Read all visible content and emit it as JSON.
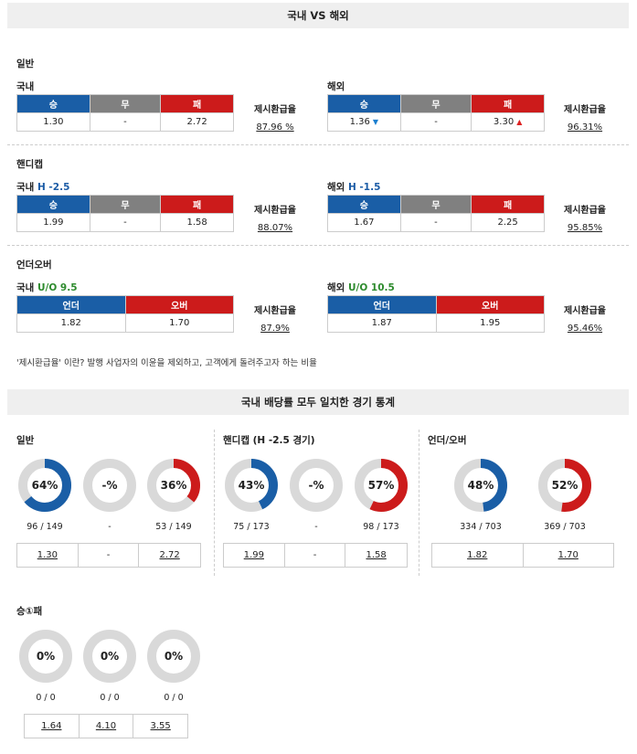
{
  "header": {
    "title": "국내 VS 해외"
  },
  "general": {
    "section_label": "일반",
    "domestic": {
      "label": "국내",
      "win": "승",
      "draw": "무",
      "lose": "패",
      "v1": "1.30",
      "v2": "-",
      "v3": "2.72",
      "rate_label": "제시환급율",
      "rate": "87.96 %"
    },
    "overseas": {
      "label": "해외",
      "win": "승",
      "draw": "무",
      "lose": "패",
      "v1": "1.36",
      "v1_arrow": "▼",
      "v2": "-",
      "v3": "3.30",
      "v3_arrow": "▲",
      "rate_label": "제시환급율",
      "rate": "96.31%"
    }
  },
  "handicap": {
    "section_label": "핸디캡",
    "domestic": {
      "label": "국내",
      "line": "H -2.5",
      "win": "승",
      "draw": "무",
      "lose": "패",
      "v1": "1.99",
      "v2": "-",
      "v3": "1.58",
      "rate_label": "제시환급율",
      "rate": "88.07%"
    },
    "overseas": {
      "label": "해외",
      "line": "H -1.5",
      "win": "승",
      "draw": "무",
      "lose": "패",
      "v1": "1.67",
      "v2": "-",
      "v3": "2.25",
      "rate_label": "제시환급율",
      "rate": "95.85%"
    }
  },
  "underover": {
    "section_label": "언더오버",
    "domestic": {
      "label": "국내",
      "line": "U/O 9.5",
      "under": "언더",
      "over": "오버",
      "v1": "1.82",
      "v2": "1.70",
      "rate_label": "제시환급율",
      "rate": "87.9%"
    },
    "overseas": {
      "label": "해외",
      "line": "U/O 10.5",
      "under": "언더",
      "over": "오버",
      "v1": "1.87",
      "v2": "1.95",
      "rate_label": "제시환급율",
      "rate": "95.46%"
    }
  },
  "note": "'제시환급율' 이란? 발행 사업자의 이윤을 제외하고, 고객에게 돌려주고자 하는 비율",
  "stats": {
    "title": "국내 배당률 모두 일치한 경기 통계",
    "general": {
      "label": "일반",
      "donuts": [
        {
          "pct_text": "64%",
          "value": 0.64,
          "color": "#1a5ea6",
          "count": "96 / 149"
        },
        {
          "pct_text": "-%",
          "value": 0,
          "color": "#1a5ea6",
          "count": "-"
        },
        {
          "pct_text": "36%",
          "value": 0.36,
          "color": "#cc1b1b",
          "count": "53 / 149"
        }
      ],
      "links": [
        "1.30",
        "-",
        "2.72"
      ]
    },
    "handicap": {
      "label": "핸디캡 (H -2.5 경기)",
      "donuts": [
        {
          "pct_text": "43%",
          "value": 0.43,
          "color": "#1a5ea6",
          "count": "75 / 173"
        },
        {
          "pct_text": "-%",
          "value": 0,
          "color": "#1a5ea6",
          "count": "-"
        },
        {
          "pct_text": "57%",
          "value": 0.57,
          "color": "#cc1b1b",
          "count": "98 / 173"
        }
      ],
      "links": [
        "1.99",
        "-",
        "1.58"
      ]
    },
    "underover": {
      "label": "언더/오버",
      "donuts": [
        {
          "pct_text": "48%",
          "value": 0.48,
          "color": "#1a5ea6",
          "count": "334 / 703"
        },
        {
          "pct_text": "52%",
          "value": 0.52,
          "color": "#cc1b1b",
          "count": "369 / 703"
        }
      ],
      "links": [
        "1.82",
        "1.70"
      ]
    },
    "win1lose": {
      "label": "승①패",
      "donuts": [
        {
          "pct_text": "0%",
          "value": 0,
          "color": "#1a5ea6",
          "count": "0 / 0"
        },
        {
          "pct_text": "0%",
          "value": 0,
          "color": "#1a5ea6",
          "count": "0 / 0"
        },
        {
          "pct_text": "0%",
          "value": 0,
          "color": "#1a5ea6",
          "count": "0 / 0"
        }
      ],
      "links": [
        "1.64",
        "4.10",
        "3.55"
      ]
    }
  },
  "colors": {
    "blue": "#1a5ea6",
    "red": "#cc1b1b",
    "gray": "#808080",
    "ring": "#d9d9d9"
  }
}
